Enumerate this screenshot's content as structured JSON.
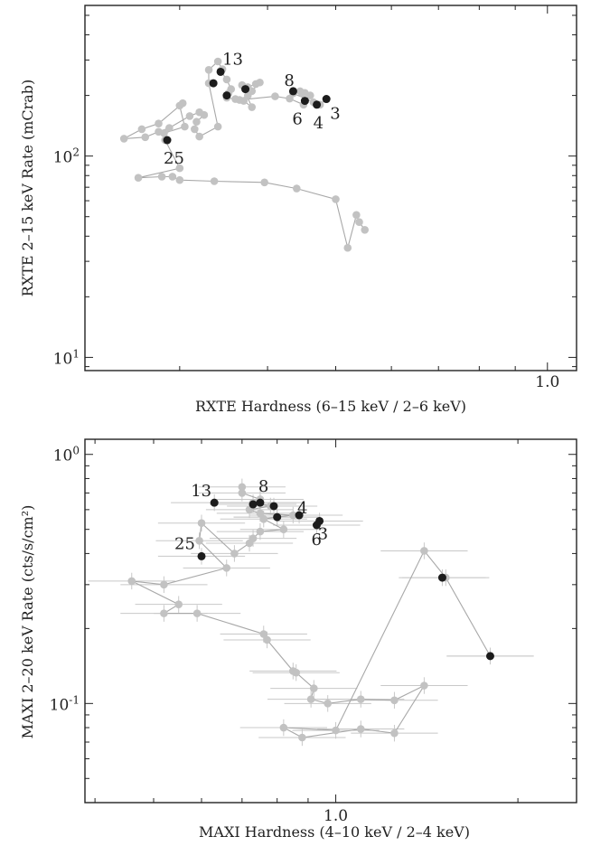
{
  "colors": {
    "track": "#a8a8a8",
    "point_gray": "#c2c2c2",
    "point_black": "#1c1c1c",
    "errorbar": "#c8c8c8",
    "axis": "#222222"
  },
  "chart_data": [
    {
      "type": "scatter",
      "title": "",
      "xlabel": "RXTE Hardness (6–15 keV / 2–6 keV)",
      "ylabel": "RXTE 2–15 keV Rate (mCrab)",
      "x_scale": "log",
      "y_scale": "log",
      "xlim": [
        0.22,
        1.1
      ],
      "ylim": [
        8.6,
        560
      ],
      "x_tick_labels": [
        {
          "value": 1.0,
          "label": "1.0"
        }
      ],
      "y_tick_labels": [
        {
          "value": 10,
          "label": "10^1"
        },
        {
          "value": 100,
          "label": "10^2"
        }
      ],
      "grid": false,
      "legend": "none",
      "track": [
        {
          "x": 0.55,
          "y": 43
        },
        {
          "x": 0.54,
          "y": 47
        },
        {
          "x": 0.535,
          "y": 51
        },
        {
          "x": 0.52,
          "y": 35
        },
        {
          "x": 0.5,
          "y": 61
        },
        {
          "x": 0.44,
          "y": 69
        },
        {
          "x": 0.396,
          "y": 74
        },
        {
          "x": 0.336,
          "y": 75
        },
        {
          "x": 0.3,
          "y": 76
        },
        {
          "x": 0.293,
          "y": 79
        },
        {
          "x": 0.283,
          "y": 79
        },
        {
          "x": 0.262,
          "y": 78
        },
        {
          "x": 0.3,
          "y": 87
        },
        {
          "x": 0.286,
          "y": 120
        },
        {
          "x": 0.285,
          "y": 130
        },
        {
          "x": 0.305,
          "y": 140
        },
        {
          "x": 0.3,
          "y": 178
        },
        {
          "x": 0.303,
          "y": 183
        },
        {
          "x": 0.28,
          "y": 145
        },
        {
          "x": 0.265,
          "y": 136
        },
        {
          "x": 0.25,
          "y": 122
        },
        {
          "x": 0.268,
          "y": 124
        },
        {
          "x": 0.28,
          "y": 132
        },
        {
          "x": 0.29,
          "y": 138
        },
        {
          "x": 0.31,
          "y": 158
        },
        {
          "x": 0.32,
          "y": 165
        },
        {
          "x": 0.325,
          "y": 160
        },
        {
          "x": 0.317,
          "y": 148
        },
        {
          "x": 0.315,
          "y": 136
        },
        {
          "x": 0.32,
          "y": 125
        },
        {
          "x": 0.34,
          "y": 140
        },
        {
          "x": 0.33,
          "y": 230
        },
        {
          "x": 0.33,
          "y": 268
        },
        {
          "x": 0.34,
          "y": 295
        },
        {
          "x": 0.345,
          "y": 270
        },
        {
          "x": 0.343,
          "y": 265
        },
        {
          "x": 0.35,
          "y": 240
        },
        {
          "x": 0.355,
          "y": 215
        },
        {
          "x": 0.352,
          "y": 205
        },
        {
          "x": 0.35,
          "y": 195
        },
        {
          "x": 0.36,
          "y": 192
        },
        {
          "x": 0.37,
          "y": 188
        },
        {
          "x": 0.38,
          "y": 175
        },
        {
          "x": 0.368,
          "y": 225
        },
        {
          "x": 0.375,
          "y": 220
        },
        {
          "x": 0.385,
          "y": 228
        },
        {
          "x": 0.39,
          "y": 232
        },
        {
          "x": 0.38,
          "y": 210
        },
        {
          "x": 0.375,
          "y": 200
        },
        {
          "x": 0.365,
          "y": 190
        },
        {
          "x": 0.41,
          "y": 198
        },
        {
          "x": 0.43,
          "y": 193
        },
        {
          "x": 0.45,
          "y": 180
        },
        {
          "x": 0.46,
          "y": 200
        },
        {
          "x": 0.448,
          "y": 205
        },
        {
          "x": 0.452,
          "y": 206
        },
        {
          "x": 0.445,
          "y": 210
        },
        {
          "x": 0.435,
          "y": 205
        },
        {
          "x": 0.465,
          "y": 185
        },
        {
          "x": 0.475,
          "y": 180
        },
        {
          "x": 0.485,
          "y": 192
        }
      ],
      "black_points": [
        {
          "x": 0.288,
          "y": 120,
          "label": "25"
        },
        {
          "x": 0.335,
          "y": 230
        },
        {
          "x": 0.343,
          "y": 262,
          "label": "13"
        },
        {
          "x": 0.35,
          "y": 200
        },
        {
          "x": 0.372,
          "y": 215
        },
        {
          "x": 0.435,
          "y": 210,
          "label": "8"
        },
        {
          "x": 0.452,
          "y": 188,
          "label": "6"
        },
        {
          "x": 0.47,
          "y": 180,
          "label": "4"
        },
        {
          "x": 0.485,
          "y": 192,
          "label": "3"
        }
      ]
    },
    {
      "type": "scatter",
      "title": "",
      "xlabel": "MAXI Hardness (4–10 keV / 2–4 keV)",
      "ylabel": "MAXI 2–20 keV Rate (cts/s/cm²)",
      "x_scale": "log",
      "y_scale": "log",
      "xlim": [
        0.385,
        2.5
      ],
      "ylim": [
        0.04,
        1.15
      ],
      "x_tick_labels": [
        {
          "value": 1.0,
          "label": "1.0"
        }
      ],
      "y_tick_labels": [
        {
          "value": 0.1,
          "label": "10^-1"
        },
        {
          "value": 1.0,
          "label": "10^0"
        }
      ],
      "grid": false,
      "legend": "none",
      "track": [
        {
          "x": 0.7,
          "y": 0.74
        },
        {
          "x": 0.7,
          "y": 0.7
        },
        {
          "x": 0.75,
          "y": 0.66
        },
        {
          "x": 0.73,
          "y": 0.64
        },
        {
          "x": 0.78,
          "y": 0.62
        },
        {
          "x": 0.72,
          "y": 0.6
        },
        {
          "x": 0.75,
          "y": 0.58
        },
        {
          "x": 0.85,
          "y": 0.57
        },
        {
          "x": 0.8,
          "y": 0.56
        },
        {
          "x": 0.76,
          "y": 0.55
        },
        {
          "x": 0.82,
          "y": 0.5
        },
        {
          "x": 0.75,
          "y": 0.49
        },
        {
          "x": 0.73,
          "y": 0.46
        },
        {
          "x": 0.72,
          "y": 0.44
        },
        {
          "x": 0.68,
          "y": 0.4
        },
        {
          "x": 0.6,
          "y": 0.53
        },
        {
          "x": 0.595,
          "y": 0.45
        },
        {
          "x": 0.66,
          "y": 0.35
        },
        {
          "x": 0.52,
          "y": 0.3
        },
        {
          "x": 0.46,
          "y": 0.31
        },
        {
          "x": 0.55,
          "y": 0.25
        },
        {
          "x": 0.52,
          "y": 0.23
        },
        {
          "x": 0.59,
          "y": 0.23
        },
        {
          "x": 0.76,
          "y": 0.19
        },
        {
          "x": 0.77,
          "y": 0.18
        },
        {
          "x": 0.85,
          "y": 0.135
        },
        {
          "x": 0.86,
          "y": 0.133
        },
        {
          "x": 0.92,
          "y": 0.115
        },
        {
          "x": 0.91,
          "y": 0.104
        },
        {
          "x": 0.97,
          "y": 0.1
        },
        {
          "x": 1.1,
          "y": 0.104
        },
        {
          "x": 1.25,
          "y": 0.103
        },
        {
          "x": 1.4,
          "y": 0.118
        },
        {
          "x": 1.25,
          "y": 0.076
        },
        {
          "x": 1.1,
          "y": 0.079
        },
        {
          "x": 0.88,
          "y": 0.073
        },
        {
          "x": 0.82,
          "y": 0.08
        },
        {
          "x": 1.0,
          "y": 0.078
        },
        {
          "x": 1.4,
          "y": 0.41
        },
        {
          "x": 1.52,
          "y": 0.32
        },
        {
          "x": 1.8,
          "y": 0.155
        }
      ],
      "black_points": [
        {
          "x": 0.6,
          "y": 0.39,
          "label": "25"
        },
        {
          "x": 0.63,
          "y": 0.64,
          "label": "13"
        },
        {
          "x": 0.73,
          "y": 0.63
        },
        {
          "x": 0.75,
          "y": 0.64,
          "label": "8"
        },
        {
          "x": 0.79,
          "y": 0.62
        },
        {
          "x": 0.8,
          "y": 0.56
        },
        {
          "x": 0.87,
          "y": 0.57,
          "label": "4"
        },
        {
          "x": 0.94,
          "y": 0.54,
          "label": "3"
        },
        {
          "x": 0.93,
          "y": 0.52,
          "label": "6"
        },
        {
          "x": 1.5,
          "y": 0.32
        },
        {
          "x": 1.8,
          "y": 0.155
        }
      ]
    }
  ]
}
